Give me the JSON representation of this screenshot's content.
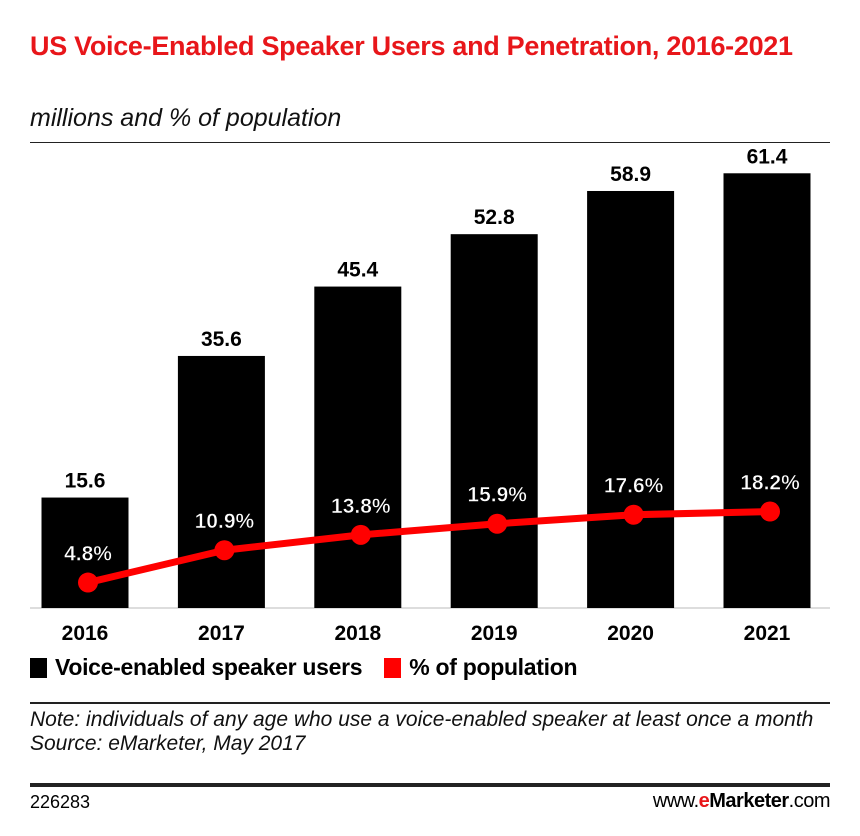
{
  "header": {
    "title": "US Voice-Enabled Speaker Users and Penetration, 2016-2021",
    "subtitle": "millions and % of population"
  },
  "chart_data": {
    "type": "bar",
    "title": "US Voice-Enabled Speaker Users and Penetration, 2016-2021",
    "subtitle": "millions and % of population",
    "categories": [
      "2016",
      "2017",
      "2018",
      "2019",
      "2020",
      "2021"
    ],
    "series": [
      {
        "name": "Voice-enabled speaker users",
        "type": "bar",
        "color": "#000000",
        "values": [
          15.6,
          35.6,
          45.4,
          52.8,
          58.9,
          61.4
        ],
        "labels": [
          "15.6",
          "35.6",
          "45.4",
          "52.8",
          "58.9",
          "61.4"
        ]
      },
      {
        "name": "% of population",
        "type": "line",
        "color": "#ff0000",
        "values": [
          4.8,
          10.9,
          13.8,
          15.9,
          17.6,
          18.2
        ],
        "labels": [
          "4.8%",
          "10.9%",
          "13.8%",
          "15.9%",
          "17.6%",
          "18.2%"
        ]
      }
    ],
    "legend": "bottom-left",
    "grid": false
  },
  "legend": {
    "items": [
      {
        "label": "Voice-enabled speaker users",
        "color": "#000000"
      },
      {
        "label": "% of population",
        "color": "#ff0000"
      }
    ]
  },
  "note": {
    "text": "Note: individuals of any age who use a voice-enabled speaker at least once a month",
    "source": "Source: eMarketer, May 2017"
  },
  "footer": {
    "id": "226283",
    "logo_prefix": "www.",
    "logo_e": "e",
    "logo_brand": "Marketer",
    "logo_suffix": ".com"
  }
}
